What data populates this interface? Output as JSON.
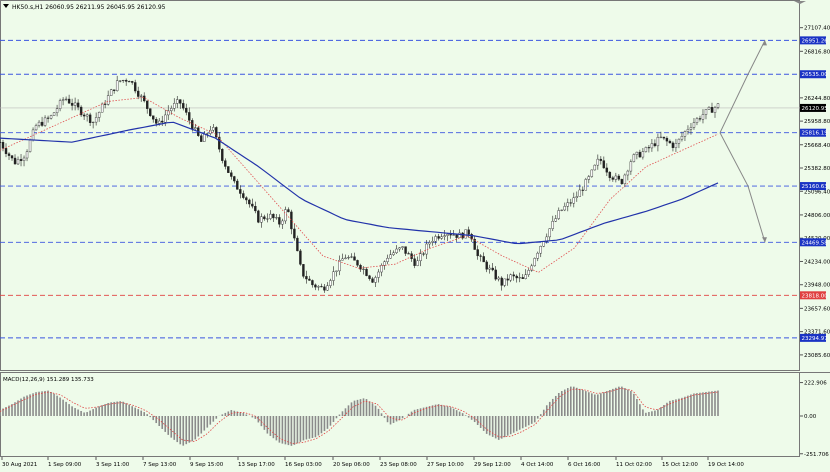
{
  "header": {
    "symbol_line": "HK50.s,H1  26060.95 26211.95 26045.95 26120.95",
    "menu_icon": "triangle-down-icon"
  },
  "macd_header": {
    "label": "MACD(12,26,9) 151.289 135.733"
  },
  "colors": {
    "background": "#eefbea",
    "hline_blue": "#3b55e0",
    "hline_red": "#e04040",
    "ma_blue": "#2233aa",
    "ma_red": "#e05050",
    "candle": "#222222",
    "price_label_bg": "#1a33c4",
    "current_price_bg": "#000000",
    "arrow": "#888888"
  },
  "chart_data": [
    {
      "type": "candlestick",
      "title": "HK50.s,H1",
      "ohlc_last": {
        "open": 26060.95,
        "high": 26211.95,
        "low": 26045.95,
        "close": 26120.95
      },
      "ylim": [
        22900,
        27300
      ],
      "y_ticks": [
        27107.4,
        26816.8,
        26244.8,
        25958.8,
        25668.4,
        25382.8,
        25096.4,
        24806.0,
        24520.0,
        24234.0,
        23948.0,
        23657.6,
        23371.6,
        23085.6
      ],
      "x_ticks": [
        "30 Aug 2021",
        "1 Sep 09:00",
        "3 Sep 11:00",
        "7 Sep 13:00",
        "9 Sep 15:00",
        "13 Sep 17:00",
        "16 Sep 03:00",
        "20 Sep 06:00",
        "23 Sep 08:00",
        "27 Sep 10:00",
        "29 Sep 12:00",
        "4 Oct 14:00",
        "6 Oct 16:00",
        "11 Oct 02:00",
        "15 Oct 12:00",
        "19 Oct 14:00"
      ],
      "horizontal_levels": [
        {
          "value": 26951.26,
          "label": "26951.26",
          "color": "blue"
        },
        {
          "value": 26535.0,
          "label": "26535.00",
          "color": "blue"
        },
        {
          "value": 25816.19,
          "label": "25816.19",
          "color": "blue"
        },
        {
          "value": 25160.63,
          "label": "25160.63",
          "color": "blue"
        },
        {
          "value": 24469.58,
          "label": "24469.58",
          "color": "blue"
        },
        {
          "value": 23818.0,
          "label": "23818.00",
          "color": "red"
        },
        {
          "value": 23294.97,
          "label": "23294.97",
          "color": "blue"
        }
      ],
      "current_price": {
        "value": 26120.95,
        "label": "26120.95"
      },
      "price_path": [
        [
          0,
          25700
        ],
        [
          0.02,
          25450
        ],
        [
          0.035,
          25550
        ],
        [
          0.05,
          25900
        ],
        [
          0.07,
          26000
        ],
        [
          0.09,
          26250
        ],
        [
          0.11,
          26100
        ],
        [
          0.13,
          25950
        ],
        [
          0.15,
          26250
        ],
        [
          0.165,
          26450
        ],
        [
          0.18,
          26480
        ],
        [
          0.2,
          26200
        ],
        [
          0.22,
          25900
        ],
        [
          0.235,
          26100
        ],
        [
          0.25,
          26200
        ],
        [
          0.265,
          25950
        ],
        [
          0.28,
          25700
        ],
        [
          0.295,
          25900
        ],
        [
          0.31,
          25500
        ],
        [
          0.325,
          25200
        ],
        [
          0.34,
          25050
        ],
        [
          0.36,
          24750
        ],
        [
          0.375,
          24800
        ],
        [
          0.39,
          24700
        ],
        [
          0.4,
          24900
        ],
        [
          0.41,
          24500
        ],
        [
          0.42,
          24100
        ],
        [
          0.435,
          23950
        ],
        [
          0.45,
          23900
        ],
        [
          0.465,
          24100
        ],
        [
          0.48,
          24300
        ],
        [
          0.5,
          24200
        ],
        [
          0.52,
          24000
        ],
        [
          0.54,
          24300
        ],
        [
          0.56,
          24400
        ],
        [
          0.58,
          24200
        ],
        [
          0.6,
          24500
        ],
        [
          0.62,
          24600
        ],
        [
          0.64,
          24550
        ],
        [
          0.655,
          24600
        ],
        [
          0.665,
          24300
        ],
        [
          0.68,
          24150
        ],
        [
          0.7,
          23950
        ],
        [
          0.71,
          24050
        ],
        [
          0.73,
          24000
        ],
        [
          0.745,
          24300
        ],
        [
          0.76,
          24550
        ],
        [
          0.78,
          24850
        ],
        [
          0.8,
          25000
        ],
        [
          0.82,
          25250
        ],
        [
          0.835,
          25500
        ],
        [
          0.85,
          25300
        ],
        [
          0.865,
          25200
        ],
        [
          0.88,
          25500
        ],
        [
          0.9,
          25600
        ],
        [
          0.92,
          25750
        ],
        [
          0.94,
          25650
        ],
        [
          0.96,
          25900
        ],
        [
          0.98,
          26050
        ],
        [
          1.0,
          26150
        ]
      ],
      "ma_blue": [
        [
          0,
          25750
        ],
        [
          0.1,
          25700
        ],
        [
          0.18,
          25850
        ],
        [
          0.24,
          25950
        ],
        [
          0.3,
          25750
        ],
        [
          0.36,
          25400
        ],
        [
          0.42,
          25000
        ],
        [
          0.48,
          24750
        ],
        [
          0.54,
          24650
        ],
        [
          0.6,
          24600
        ],
        [
          0.66,
          24550
        ],
        [
          0.72,
          24450
        ],
        [
          0.78,
          24500
        ],
        [
          0.84,
          24700
        ],
        [
          0.9,
          24850
        ],
        [
          0.95,
          25000
        ],
        [
          1.0,
          25200
        ]
      ],
      "ma_red": [
        [
          0,
          25600
        ],
        [
          0.05,
          25800
        ],
        [
          0.1,
          26000
        ],
        [
          0.15,
          26200
        ],
        [
          0.2,
          26250
        ],
        [
          0.25,
          26000
        ],
        [
          0.3,
          25800
        ],
        [
          0.35,
          25300
        ],
        [
          0.4,
          24800
        ],
        [
          0.45,
          24300
        ],
        [
          0.5,
          24150
        ],
        [
          0.55,
          24200
        ],
        [
          0.6,
          24400
        ],
        [
          0.65,
          24550
        ],
        [
          0.7,
          24300
        ],
        [
          0.75,
          24100
        ],
        [
          0.8,
          24400
        ],
        [
          0.85,
          25000
        ],
        [
          0.9,
          25400
        ],
        [
          0.95,
          25600
        ],
        [
          1.0,
          25800
        ]
      ],
      "projection_arrows": [
        {
          "to": 26951.26,
          "direction": "up"
        },
        {
          "to": 24469.58,
          "direction": "down"
        }
      ]
    },
    {
      "type": "histogram",
      "title": "MACD(12,26,9)",
      "values_last": {
        "macd": 151.289,
        "signal": 135.733
      },
      "ylim": [
        -260,
        240
      ],
      "y_ticks": [
        222.906,
        0.0,
        -251.706
      ],
      "y_tick_labels": [
        "222.906",
        "0.00",
        "-251.706"
      ],
      "hist": [
        40,
        80,
        130,
        160,
        170,
        120,
        60,
        20,
        60,
        90,
        100,
        60,
        20,
        -60,
        -140,
        -200,
        -160,
        -80,
        0,
        40,
        20,
        -20,
        -120,
        -180,
        -200,
        -160,
        -140,
        -80,
        20,
        100,
        120,
        60,
        -60,
        -20,
        40,
        60,
        80,
        60,
        20,
        -40,
        -120,
        -160,
        -120,
        -80,
        -40,
        80,
        160,
        200,
        170,
        140,
        170,
        200,
        160,
        20,
        40,
        100,
        120,
        150,
        160,
        170
      ],
      "signal": [
        30,
        70,
        110,
        145,
        160,
        140,
        90,
        50,
        60,
        80,
        90,
        70,
        35,
        -20,
        -90,
        -160,
        -170,
        -120,
        -40,
        20,
        25,
        0,
        -80,
        -150,
        -185,
        -175,
        -150,
        -100,
        -20,
        60,
        100,
        80,
        -10,
        -30,
        20,
        50,
        70,
        65,
        35,
        -15,
        -90,
        -140,
        -135,
        -100,
        -55,
        40,
        130,
        180,
        175,
        150,
        160,
        185,
        170,
        60,
        40,
        80,
        110,
        140,
        150,
        160
      ]
    }
  ]
}
